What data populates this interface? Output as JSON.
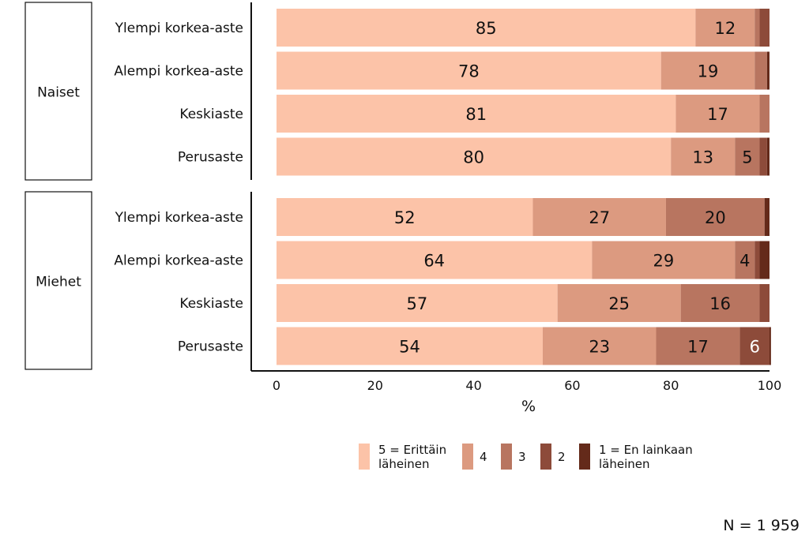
{
  "chart_data": {
    "type": "bar",
    "orientation": "horizontal",
    "stacked": true,
    "xlabel": "%",
    "xlim": [
      0,
      100
    ],
    "xticks": [
      0,
      20,
      40,
      60,
      80,
      100
    ],
    "grid": false,
    "legend_position": "bottom",
    "groups": [
      {
        "name": "Naiset",
        "categories": [
          "Ylempi korkea-aste",
          "Alempi korkea-aste",
          "Keskiaste",
          "Perusaste"
        ],
        "rows": [
          [
            85,
            12,
            1,
            2,
            0
          ],
          [
            78,
            19,
            2.5,
            0,
            0.5
          ],
          [
            81,
            17,
            2,
            0,
            0
          ],
          [
            80,
            13,
            5,
            1.5,
            0.5
          ]
        ],
        "labels": [
          [
            "85",
            "12",
            "",
            "",
            ""
          ],
          [
            "78",
            "19",
            "",
            "",
            ""
          ],
          [
            "81",
            "17",
            "",
            "",
            ""
          ],
          [
            "80",
            "13",
            "5",
            "",
            ""
          ]
        ]
      },
      {
        "name": "Miehet",
        "categories": [
          "Ylempi korkea-aste",
          "Alempi korkea-aste",
          "Keskiaste",
          "Perusaste"
        ],
        "rows": [
          [
            52,
            27,
            20,
            0,
            1
          ],
          [
            64,
            29,
            4,
            1,
            2
          ],
          [
            57,
            25,
            16,
            2,
            0
          ],
          [
            54,
            23,
            17,
            6,
            0.3
          ]
        ],
        "labels": [
          [
            "52",
            "27",
            "20",
            "",
            ""
          ],
          [
            "64",
            "29",
            "4",
            "",
            ""
          ],
          [
            "57",
            "25",
            "16",
            "",
            ""
          ],
          [
            "54",
            "23",
            "17",
            "6",
            ""
          ]
        ]
      }
    ],
    "series": [
      {
        "name": "5 = Erittäin läheinen",
        "lines": [
          "5 = Erittäin",
          "läheinen"
        ],
        "color": "#fcc3a8"
      },
      {
        "name": "4",
        "lines": [
          "4"
        ],
        "color": "#dc9a80"
      },
      {
        "name": "3",
        "lines": [
          "3"
        ],
        "color": "#b87560"
      },
      {
        "name": "2",
        "lines": [
          "2"
        ],
        "color": "#8d4b3a"
      },
      {
        "name": "1 = En lainkaan läheinen",
        "lines": [
          "1 = En lainkaan",
          "läheinen"
        ],
        "color": "#642a1a"
      }
    ]
  },
  "footnote": "N = 1 959"
}
